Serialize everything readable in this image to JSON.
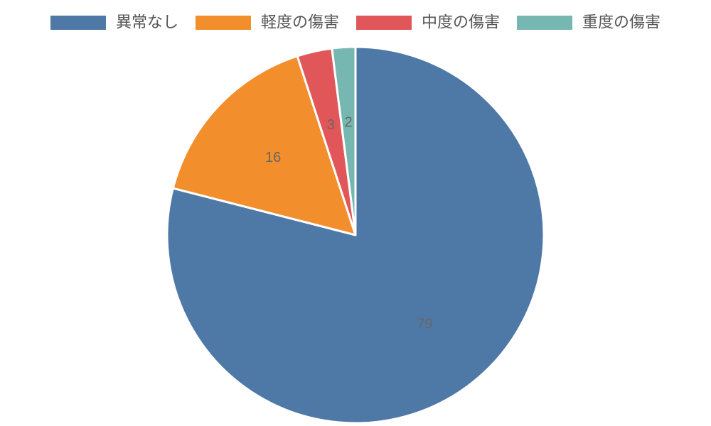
{
  "chart_data": {
    "type": "pie",
    "title": "",
    "categories": [
      "異常なし",
      "軽度の傷害",
      "中度の傷害",
      "重度の傷害"
    ],
    "values": [
      79,
      16,
      3,
      2
    ],
    "colors": [
      "#4e79a7",
      "#f28e2b",
      "#e15759",
      "#76b7b2"
    ],
    "data_labels": [
      "79",
      "16",
      "3",
      "2"
    ],
    "legend_position": "top",
    "start_angle": "12 o'clock",
    "direction": "clockwise"
  }
}
